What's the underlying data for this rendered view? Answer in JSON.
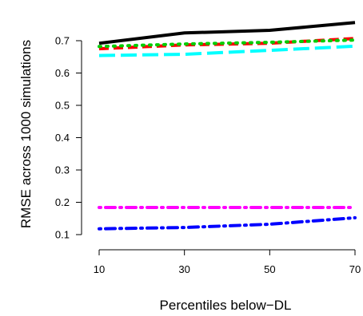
{
  "chart_data": {
    "type": "line",
    "title": "",
    "xlabel": "Percentiles below−DL",
    "ylabel": "RMSE across 1000 simulations",
    "x": [
      10,
      30,
      50,
      70
    ],
    "x_ticks": [
      10,
      30,
      50,
      70
    ],
    "x_tick_labels": [
      "10",
      "30",
      "50",
      "70"
    ],
    "xlim": [
      10,
      70
    ],
    "y_ticks": [
      0.1,
      0.2,
      0.3,
      0.4,
      0.5,
      0.6,
      0.7
    ],
    "y_tick_labels": [
      "0.1",
      "0.2",
      "0.3",
      "0.4",
      "0.5",
      "0.6",
      "0.7"
    ],
    "ylim": [
      0.1,
      0.75
    ],
    "grid": false,
    "legend": "none",
    "series": [
      {
        "color": "#000000",
        "line_style": "solid",
        "values": [
          0.692,
          0.724,
          0.732,
          0.756
        ]
      },
      {
        "color": "#ff0000",
        "line_style": "dashed",
        "values": [
          0.675,
          0.687,
          0.692,
          0.707
        ]
      },
      {
        "color": "#00cd00",
        "line_style": "dotted",
        "values": [
          0.682,
          0.69,
          0.695,
          0.702
        ]
      },
      {
        "color": "#00ffff",
        "line_style": "longdash",
        "values": [
          0.654,
          0.658,
          0.67,
          0.683
        ]
      },
      {
        "color": "#ff00ff",
        "line_style": "dotdash",
        "values": [
          0.184,
          0.184,
          0.184,
          0.184
        ]
      },
      {
        "color": "#0000ff",
        "line_style": "dotdash",
        "values": [
          0.118,
          0.122,
          0.132,
          0.152
        ]
      }
    ]
  }
}
